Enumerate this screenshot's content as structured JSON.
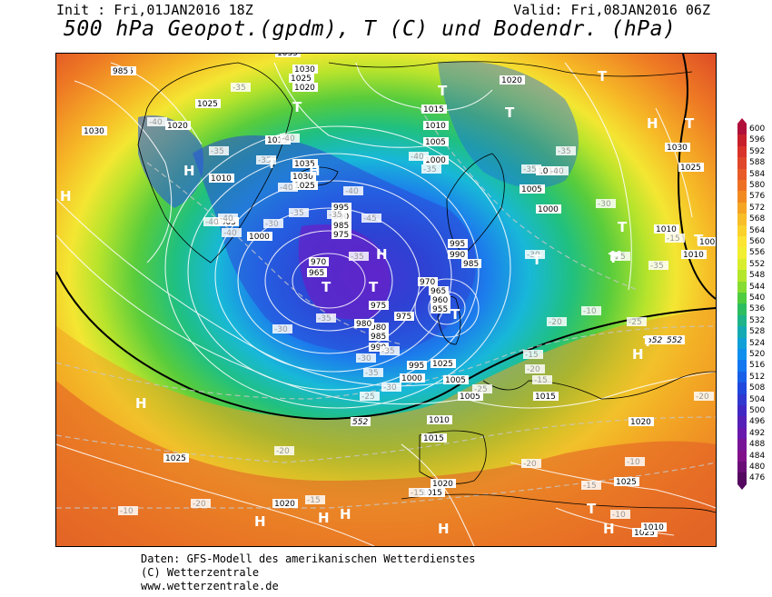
{
  "header": {
    "init": "Init : Fri,01JAN2016 18Z",
    "valid": "Valid: Fri,08JAN2016 06Z",
    "title": "500 hPa Geopot.(gpdm), T (C) und Bodendr. (hPa)"
  },
  "legend": {
    "levels": [
      "600",
      "596",
      "592",
      "588",
      "584",
      "580",
      "576",
      "572",
      "568",
      "564",
      "560",
      "556",
      "552",
      "548",
      "544",
      "540",
      "536",
      "532",
      "528",
      "524",
      "520",
      "516",
      "512",
      "508",
      "504",
      "500",
      "496",
      "492",
      "488",
      "484",
      "480",
      "476"
    ],
    "colors": [
      "#b0103a",
      "#c8202a",
      "#d8322a",
      "#e0462a",
      "#e85a28",
      "#ee7024",
      "#f28a22",
      "#f6a424",
      "#f8be28",
      "#fad22a",
      "#fce432",
      "#f2ee30",
      "#d8ee2c",
      "#b4e62a",
      "#86dc30",
      "#50cc40",
      "#2cbe60",
      "#1cb488",
      "#14aab4",
      "#10a0d8",
      "#1090ee",
      "#1278f0",
      "#1860e8",
      "#2048dc",
      "#3038d0",
      "#4028c4",
      "#5420b8",
      "#6818ac",
      "#781498",
      "#80108a",
      "#6a0c76",
      "#540860"
    ]
  },
  "map": {
    "pressure_labels": [
      {
        "t": "1035"
      },
      {
        "t": "1035"
      },
      {
        "t": "1030"
      },
      {
        "t": "1025"
      },
      {
        "t": "1020"
      },
      {
        "t": "1025"
      },
      {
        "t": "1030"
      },
      {
        "t": "1020"
      },
      {
        "t": "1015"
      },
      {
        "t": "1035"
      },
      {
        "t": "1030"
      },
      {
        "t": "1025"
      },
      {
        "t": "1010"
      },
      {
        "t": "1005"
      },
      {
        "t": "1000"
      },
      {
        "t": "1015"
      },
      {
        "t": "1010"
      },
      {
        "t": "1005"
      },
      {
        "t": "1000"
      },
      {
        "t": "1020"
      },
      {
        "t": "1010"
      },
      {
        "t": "1005"
      },
      {
        "t": "1000"
      },
      {
        "t": "1030"
      },
      {
        "t": "1025"
      },
      {
        "t": "1010"
      },
      {
        "t": "1005"
      },
      {
        "t": "1010"
      },
      {
        "t": "995"
      },
      {
        "t": "990"
      },
      {
        "t": "985"
      },
      {
        "t": "975"
      },
      {
        "t": "970"
      },
      {
        "t": "965"
      },
      {
        "t": "995"
      },
      {
        "t": "990"
      },
      {
        "t": "985"
      },
      {
        "t": "970"
      },
      {
        "t": "965"
      },
      {
        "t": "960"
      },
      {
        "t": "955"
      },
      {
        "t": "975"
      },
      {
        "t": "980"
      },
      {
        "t": "985"
      },
      {
        "t": "990"
      },
      {
        "t": "995"
      },
      {
        "t": "1000"
      },
      {
        "t": "1005"
      },
      {
        "t": "1005"
      },
      {
        "t": "1010"
      },
      {
        "t": "1015"
      },
      {
        "t": "1015"
      },
      {
        "t": "1020"
      },
      {
        "t": "1025"
      },
      {
        "t": "1025"
      },
      {
        "t": "1020"
      },
      {
        "t": "1020"
      },
      {
        "t": "1015"
      },
      {
        "t": "1025"
      },
      {
        "t": "1010"
      },
      {
        "t": "1025"
      },
      {
        "t": "980"
      },
      {
        "t": "975"
      },
      {
        "t": "985"
      }
    ],
    "temp_labels": [
      "-40",
      "-35",
      "-40",
      "-35",
      "-35",
      "-40",
      "-35",
      "-30",
      "-35",
      "-40",
      "-40",
      "-35",
      "-35",
      "-40",
      "-35",
      "-30",
      "-40",
      "-40",
      "-40",
      "-45",
      "-35",
      "-35",
      "-30",
      "-25",
      "-30",
      "-25",
      "-35",
      "-35",
      "-30",
      "-20",
      "-25",
      "-20",
      "-15",
      "-20",
      "-15",
      "-10",
      "-15",
      "-10",
      "-20",
      "-15",
      "-15",
      "-10",
      "-10",
      "-20",
      "-30",
      "-35",
      "-25",
      "-20",
      "-15"
    ],
    "contour_552": [
      "552",
      "552",
      "552"
    ],
    "high_markers": [
      "H",
      "H",
      "H",
      "H",
      "H",
      "H",
      "H",
      "H",
      "H",
      "H",
      "H",
      "H",
      "H"
    ],
    "low_markers": [
      "T",
      "T",
      "T",
      "T",
      "T",
      "T",
      "T",
      "T",
      "T",
      "T",
      "T",
      "T",
      "T",
      "T",
      "T"
    ]
  },
  "credits": {
    "line1": "Daten: GFS-Modell des amerikanischen Wetterdienstes",
    "line2": "(C) Wetterzentrale",
    "line3": "www.wetterzentrale.de"
  }
}
